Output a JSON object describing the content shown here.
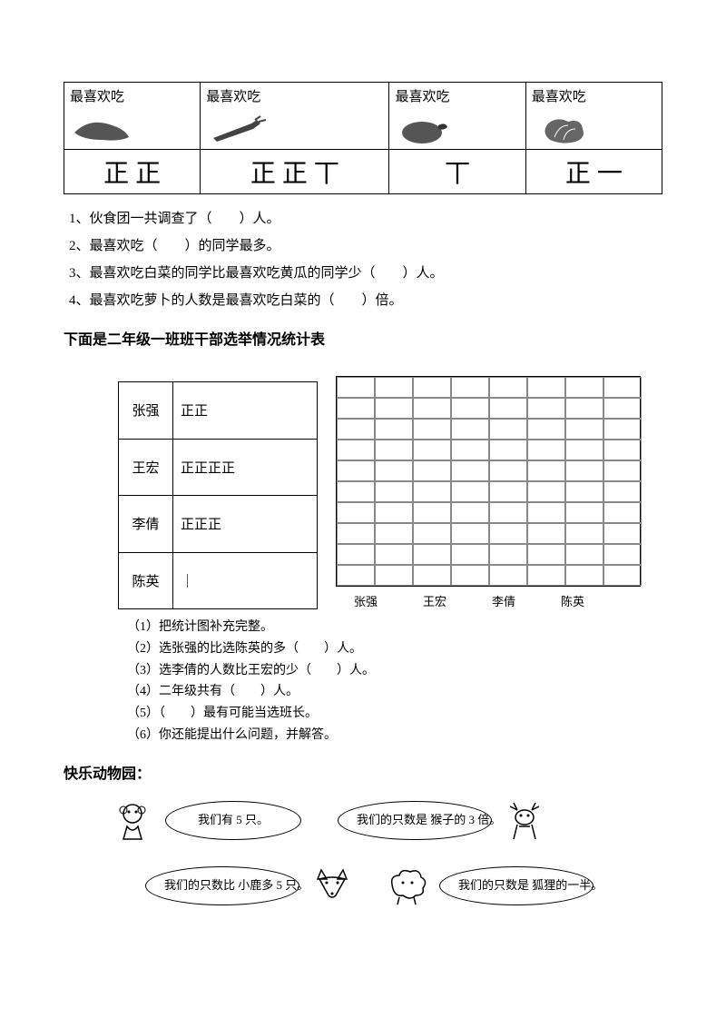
{
  "veg": {
    "header_label": "最喜欢吃",
    "items": [
      {
        "name": "pepper",
        "tally": "正 正"
      },
      {
        "name": "carrot",
        "tally": "正 正 丅"
      },
      {
        "name": "eggplant",
        "tally": "丅"
      },
      {
        "name": "cabbage",
        "tally": "正 一"
      }
    ]
  },
  "veg_questions": [
    "1、伙食团一共调查了（　　）人。",
    "2、最喜欢吃（　　）的同学最多。",
    "3、最喜欢吃白菜的同学比最喜欢吃黄瓜的同学少（　　）人。",
    "4、最喜欢吃萝卜的人数是最喜欢吃白菜的（　　）倍。"
  ],
  "election": {
    "heading": "下面是二年级一班班干部选举情况统计表",
    "rows": [
      {
        "name": "张强",
        "tally": "正正"
      },
      {
        "name": "王宏",
        "tally": "正正正正"
      },
      {
        "name": "李倩",
        "tally": "正正正"
      },
      {
        "name": "陈英",
        "tally": "｜"
      }
    ],
    "chart": {
      "cols": 8,
      "rows": 10,
      "x_labels": [
        "张强",
        "王宏",
        "李倩",
        "陈英"
      ]
    },
    "sub_questions": [
      "（1）把统计图补充完整。",
      "（2）选张强的比选陈英的多（　　）人。",
      "（3）选李倩的人数比王宏的少（　　）人。",
      "（4）二年级共有（　　）人。",
      "（5）（　　）最有可能当选班长。",
      "（6）你还能提出什么问题，并解答。"
    ]
  },
  "zoo": {
    "heading": "快乐动物园：",
    "bubbles": {
      "monkey": "我们有 5 只。",
      "deer": "我们的只数是\n猴子的 3 倍。",
      "fox": "我们的只数比\n小鹿多 5 只。",
      "sheep": "我们的只数是\n狐狸的一半。"
    }
  },
  "colors": {
    "text": "#000000",
    "bg": "#ffffff",
    "grid_line": "#888888"
  }
}
